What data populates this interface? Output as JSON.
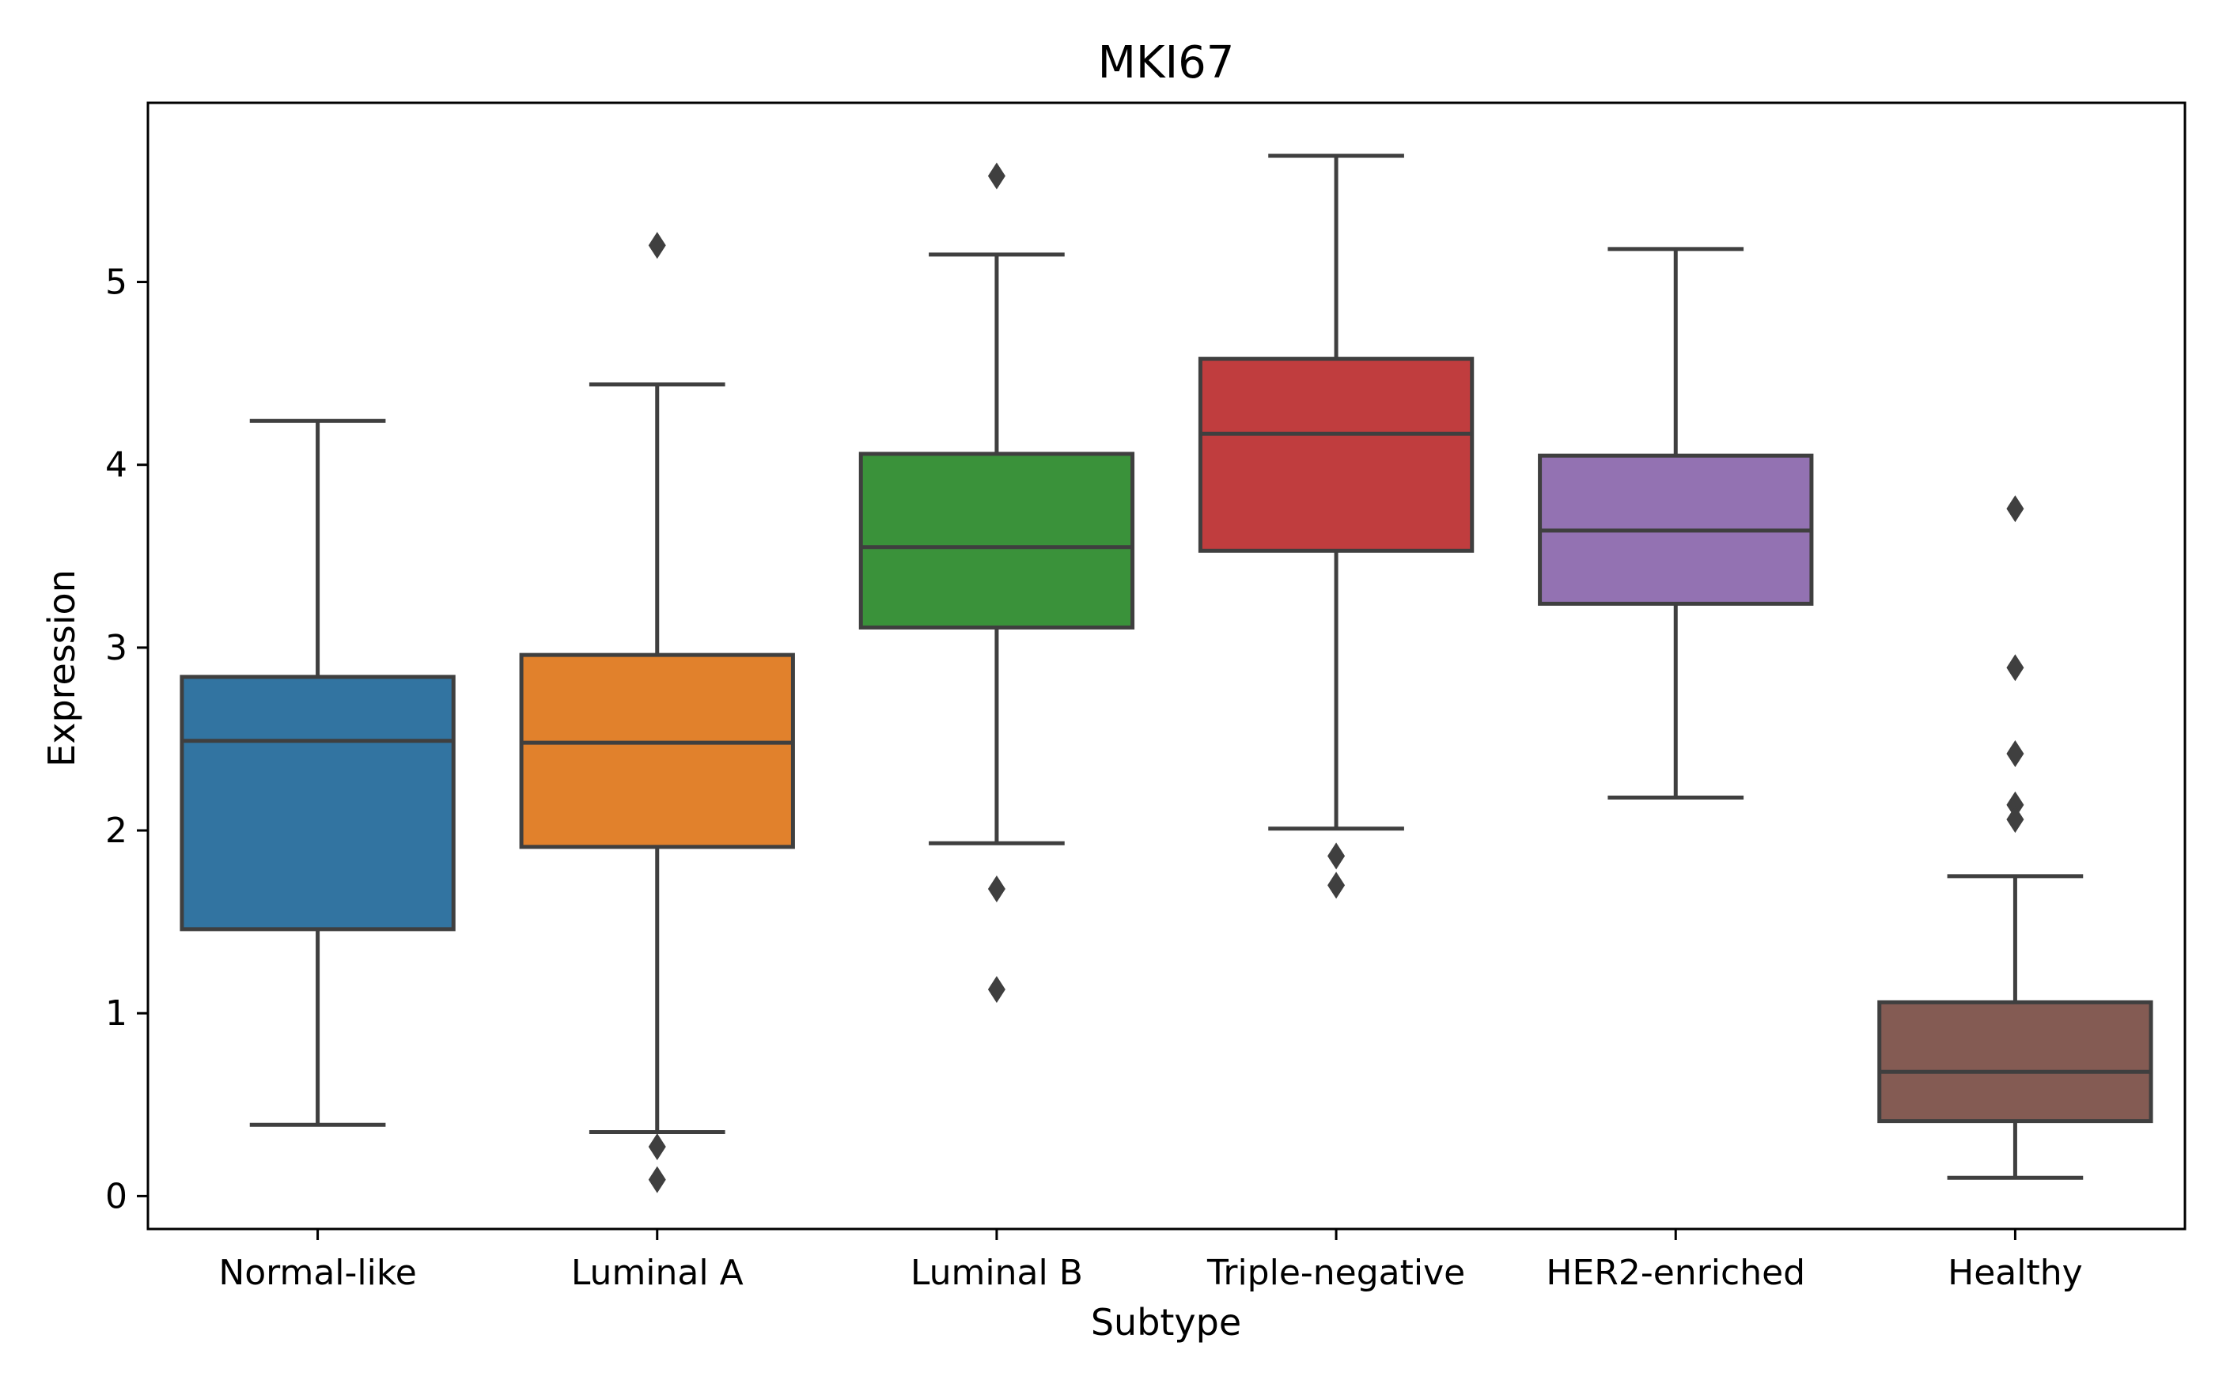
{
  "chart_data": {
    "type": "box",
    "title": "MKI67",
    "xlabel": "Subtype",
    "ylabel": "Expression",
    "ylim": [
      -0.18,
      5.98
    ],
    "yticks": [
      0,
      1,
      2,
      3,
      4,
      5
    ],
    "grid": false,
    "categories": [
      "Normal-like",
      "Luminal A",
      "Luminal B",
      "Triple-negative",
      "HER2-enriched",
      "Healthy"
    ],
    "boxes": [
      {
        "category": "Normal-like",
        "color": "#3274a1",
        "whisker_low": 0.39,
        "q1": 1.46,
        "median": 2.49,
        "q3": 2.84,
        "whisker_high": 4.24,
        "outliers": []
      },
      {
        "category": "Luminal A",
        "color": "#e1812c",
        "whisker_low": 0.35,
        "q1": 1.91,
        "median": 2.48,
        "q3": 2.96,
        "whisker_high": 4.44,
        "outliers": [
          5.2,
          0.27,
          0.09
        ]
      },
      {
        "category": "Luminal B",
        "color": "#3a923a",
        "whisker_low": 1.93,
        "q1": 3.11,
        "median": 3.55,
        "q3": 4.06,
        "whisker_high": 5.15,
        "outliers": [
          5.58,
          1.68,
          1.13
        ]
      },
      {
        "category": "Triple-negative",
        "color": "#c03d3e",
        "whisker_low": 2.01,
        "q1": 3.53,
        "median": 4.17,
        "q3": 4.58,
        "whisker_high": 5.69,
        "outliers": [
          1.86,
          1.7
        ]
      },
      {
        "category": "HER2-enriched",
        "color": "#9372b2",
        "whisker_low": 2.18,
        "q1": 3.24,
        "median": 3.64,
        "q3": 4.05,
        "whisker_high": 5.18,
        "outliers": []
      },
      {
        "category": "Healthy",
        "color": "#845b53",
        "whisker_low": 0.1,
        "q1": 0.41,
        "median": 0.68,
        "q3": 1.06,
        "whisker_high": 1.75,
        "outliers": [
          3.76,
          2.89,
          2.42,
          2.14,
          2.06
        ]
      }
    ]
  }
}
